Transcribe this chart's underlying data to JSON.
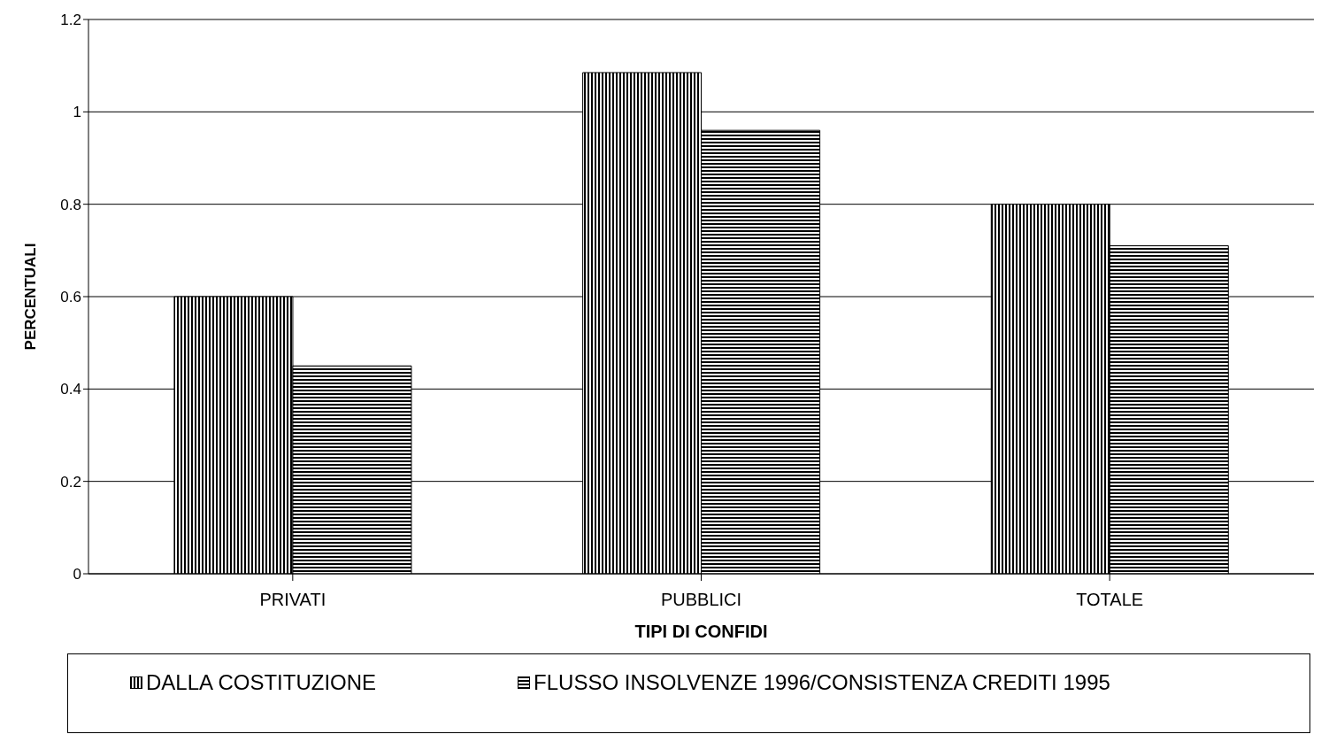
{
  "chart_data": {
    "type": "bar",
    "xlabel": "TIPI DI CONFIDI",
    "ylabel": "PERCENTUALI",
    "categories": [
      "PRIVATI",
      "PUBBLICI",
      "TOTALE"
    ],
    "series": [
      {
        "name": "DALLA COSTITUZIONE",
        "color": "#000000",
        "values": [
          0.6,
          1.085,
          0.8
        ]
      },
      {
        "name": "FLUSSO INSOLVENZE 1996/CONSISTENZA CREDITI 1995",
        "color": "#000000",
        "values": [
          0.45,
          0.96,
          0.71
        ]
      }
    ],
    "ylim": [
      0,
      1.2
    ],
    "yticks": [
      0,
      0.2,
      0.4,
      0.6,
      0.8,
      1,
      1.2
    ],
    "grid": "y",
    "legend": "bottom"
  }
}
